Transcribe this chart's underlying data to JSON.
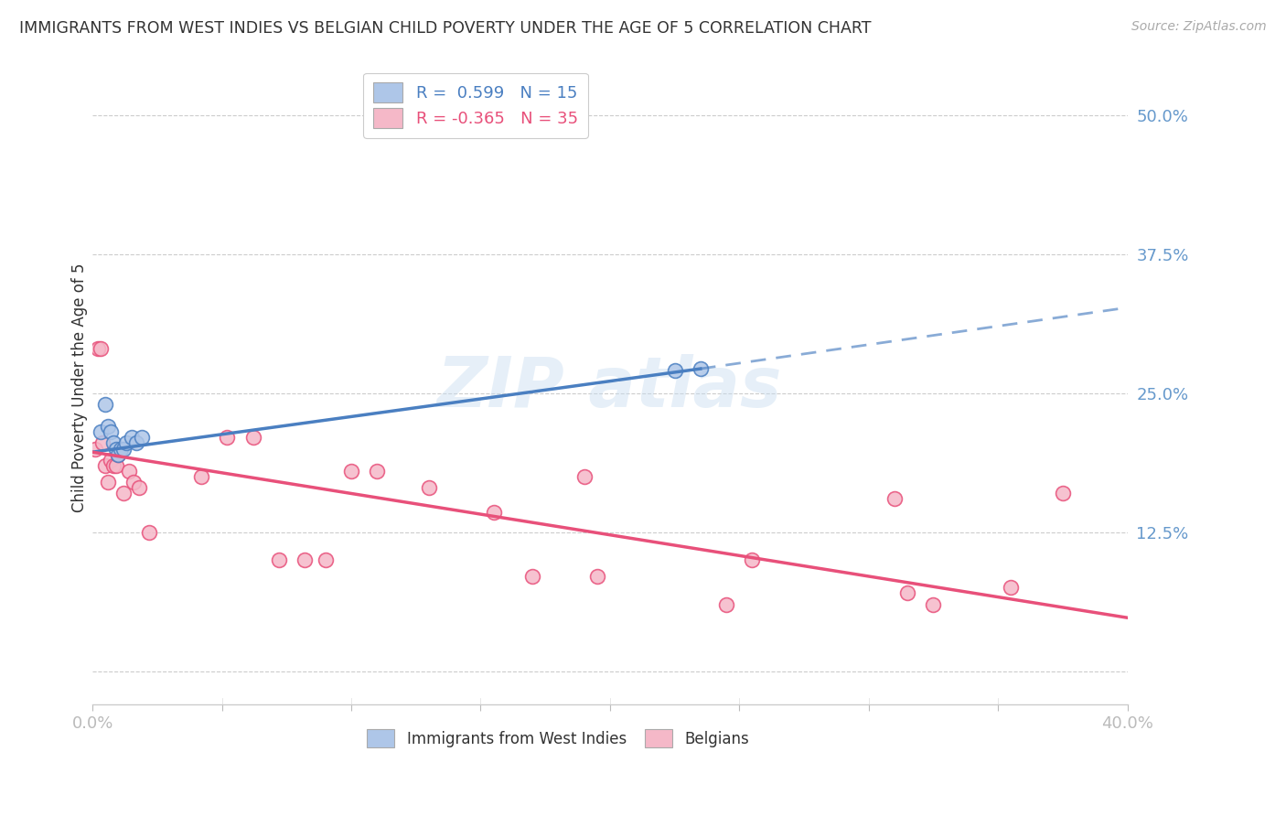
{
  "title": "IMMIGRANTS FROM WEST INDIES VS BELGIAN CHILD POVERTY UNDER THE AGE OF 5 CORRELATION CHART",
  "source": "Source: ZipAtlas.com",
  "ylabel": "Child Poverty Under the Age of 5",
  "ytick_values": [
    0.0,
    0.125,
    0.25,
    0.375,
    0.5
  ],
  "ytick_labels": [
    "0.0%",
    "12.5%",
    "25.0%",
    "37.5%",
    "50.0%"
  ],
  "xlim": [
    0.0,
    0.4
  ],
  "ylim": [
    -0.03,
    0.54
  ],
  "blue_R": "0.599",
  "blue_N": "15",
  "pink_R": "-0.365",
  "pink_N": "35",
  "blue_color": "#aec6e8",
  "pink_color": "#f5b8c8",
  "blue_line_color": "#4a7fc1",
  "pink_line_color": "#e8507a",
  "watermark": "ZIP atlas",
  "blue_points_x": [
    0.003,
    0.005,
    0.006,
    0.007,
    0.008,
    0.009,
    0.01,
    0.011,
    0.012,
    0.013,
    0.015,
    0.017,
    0.019,
    0.225,
    0.235
  ],
  "blue_points_y": [
    0.215,
    0.24,
    0.22,
    0.215,
    0.205,
    0.2,
    0.195,
    0.2,
    0.2,
    0.205,
    0.21,
    0.205,
    0.21,
    0.27,
    0.272
  ],
  "pink_points_x": [
    0.001,
    0.002,
    0.003,
    0.004,
    0.005,
    0.006,
    0.007,
    0.008,
    0.009,
    0.01,
    0.012,
    0.014,
    0.016,
    0.018,
    0.022,
    0.042,
    0.052,
    0.062,
    0.072,
    0.082,
    0.09,
    0.1,
    0.11,
    0.13,
    0.155,
    0.17,
    0.19,
    0.195,
    0.245,
    0.255,
    0.31,
    0.315,
    0.325,
    0.355,
    0.375
  ],
  "pink_points_y": [
    0.2,
    0.29,
    0.29,
    0.205,
    0.185,
    0.17,
    0.19,
    0.185,
    0.185,
    0.195,
    0.16,
    0.18,
    0.17,
    0.165,
    0.125,
    0.175,
    0.21,
    0.21,
    0.1,
    0.1,
    0.1,
    0.18,
    0.18,
    0.165,
    0.143,
    0.085,
    0.175,
    0.085,
    0.06,
    0.1,
    0.155,
    0.07,
    0.06,
    0.075,
    0.16
  ],
  "grid_color": "#cccccc",
  "background_color": "#ffffff",
  "title_color": "#333333",
  "axis_color": "#6699cc",
  "blue_line_start_x": 0.0,
  "blue_line_start_y": 0.197,
  "blue_line_solid_end_x": 0.235,
  "blue_line_solid_end_y": 0.272,
  "blue_line_dash_end_x": 0.4,
  "blue_line_dash_end_y": 0.327,
  "pink_line_start_x": 0.0,
  "pink_line_start_y": 0.197,
  "pink_line_end_x": 0.4,
  "pink_line_end_y": 0.048
}
